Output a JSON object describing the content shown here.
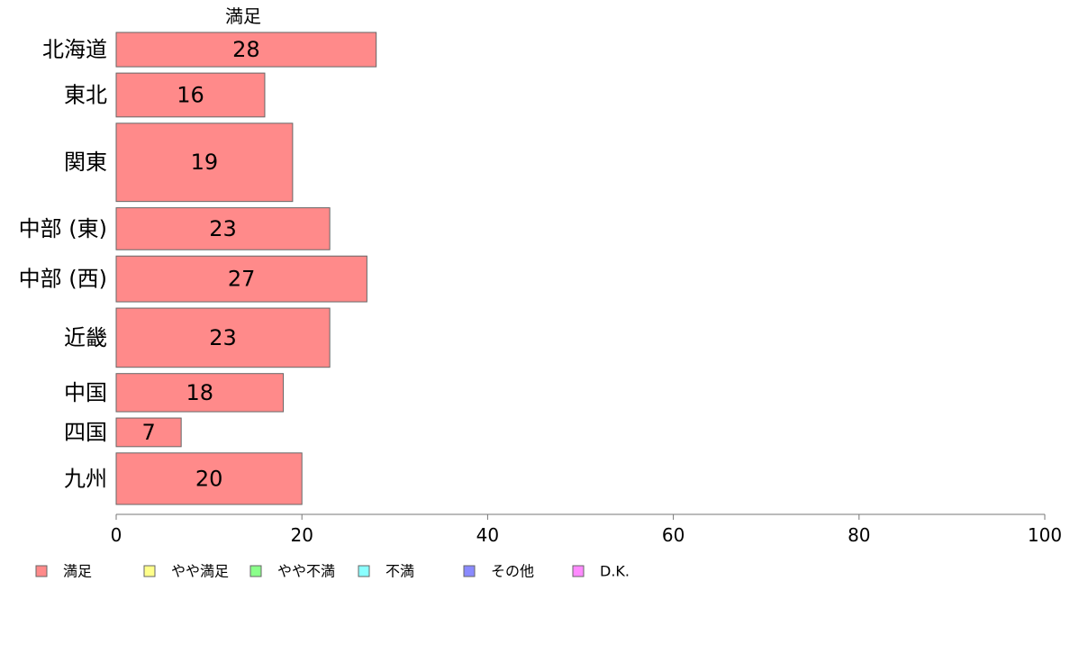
{
  "chart_data": {
    "type": "bar",
    "orientation": "horizontal",
    "series_title": "満足",
    "categories": [
      "北海道",
      "東北",
      "関東",
      "中部 (東)",
      "中部 (西)",
      "近畿",
      "中国",
      "四国",
      "九州"
    ],
    "series": [
      {
        "name": "満足",
        "values": [
          28,
          16,
          19,
          23,
          27,
          23,
          18,
          7,
          20
        ],
        "color": "#ff8a8a"
      }
    ],
    "data_labels": [
      "28",
      "16",
      "19",
      "23",
      "27",
      "23",
      "18",
      "7",
      "20"
    ],
    "bar_weights": [
      0.9,
      1.15,
      2.05,
      1.1,
      1.2,
      1.55,
      1.0,
      0.75,
      1.35
    ],
    "xlim": [
      0,
      100
    ],
    "x_ticks": [
      "0",
      "20",
      "40",
      "60",
      "80",
      "100"
    ],
    "xlabel": "",
    "ylabel": "",
    "grid": false,
    "legend_position": "bottom-left",
    "legend": [
      {
        "label": "満足",
        "color": "#ff8a8a"
      },
      {
        "label": "やや満足",
        "color": "#ffff8a"
      },
      {
        "label": "やや不満",
        "color": "#8aff8a"
      },
      {
        "label": "不満",
        "color": "#8affff"
      },
      {
        "label": "その他",
        "color": "#8a8aff"
      },
      {
        "label": "D.K.",
        "color": "#ff8aff"
      }
    ]
  }
}
